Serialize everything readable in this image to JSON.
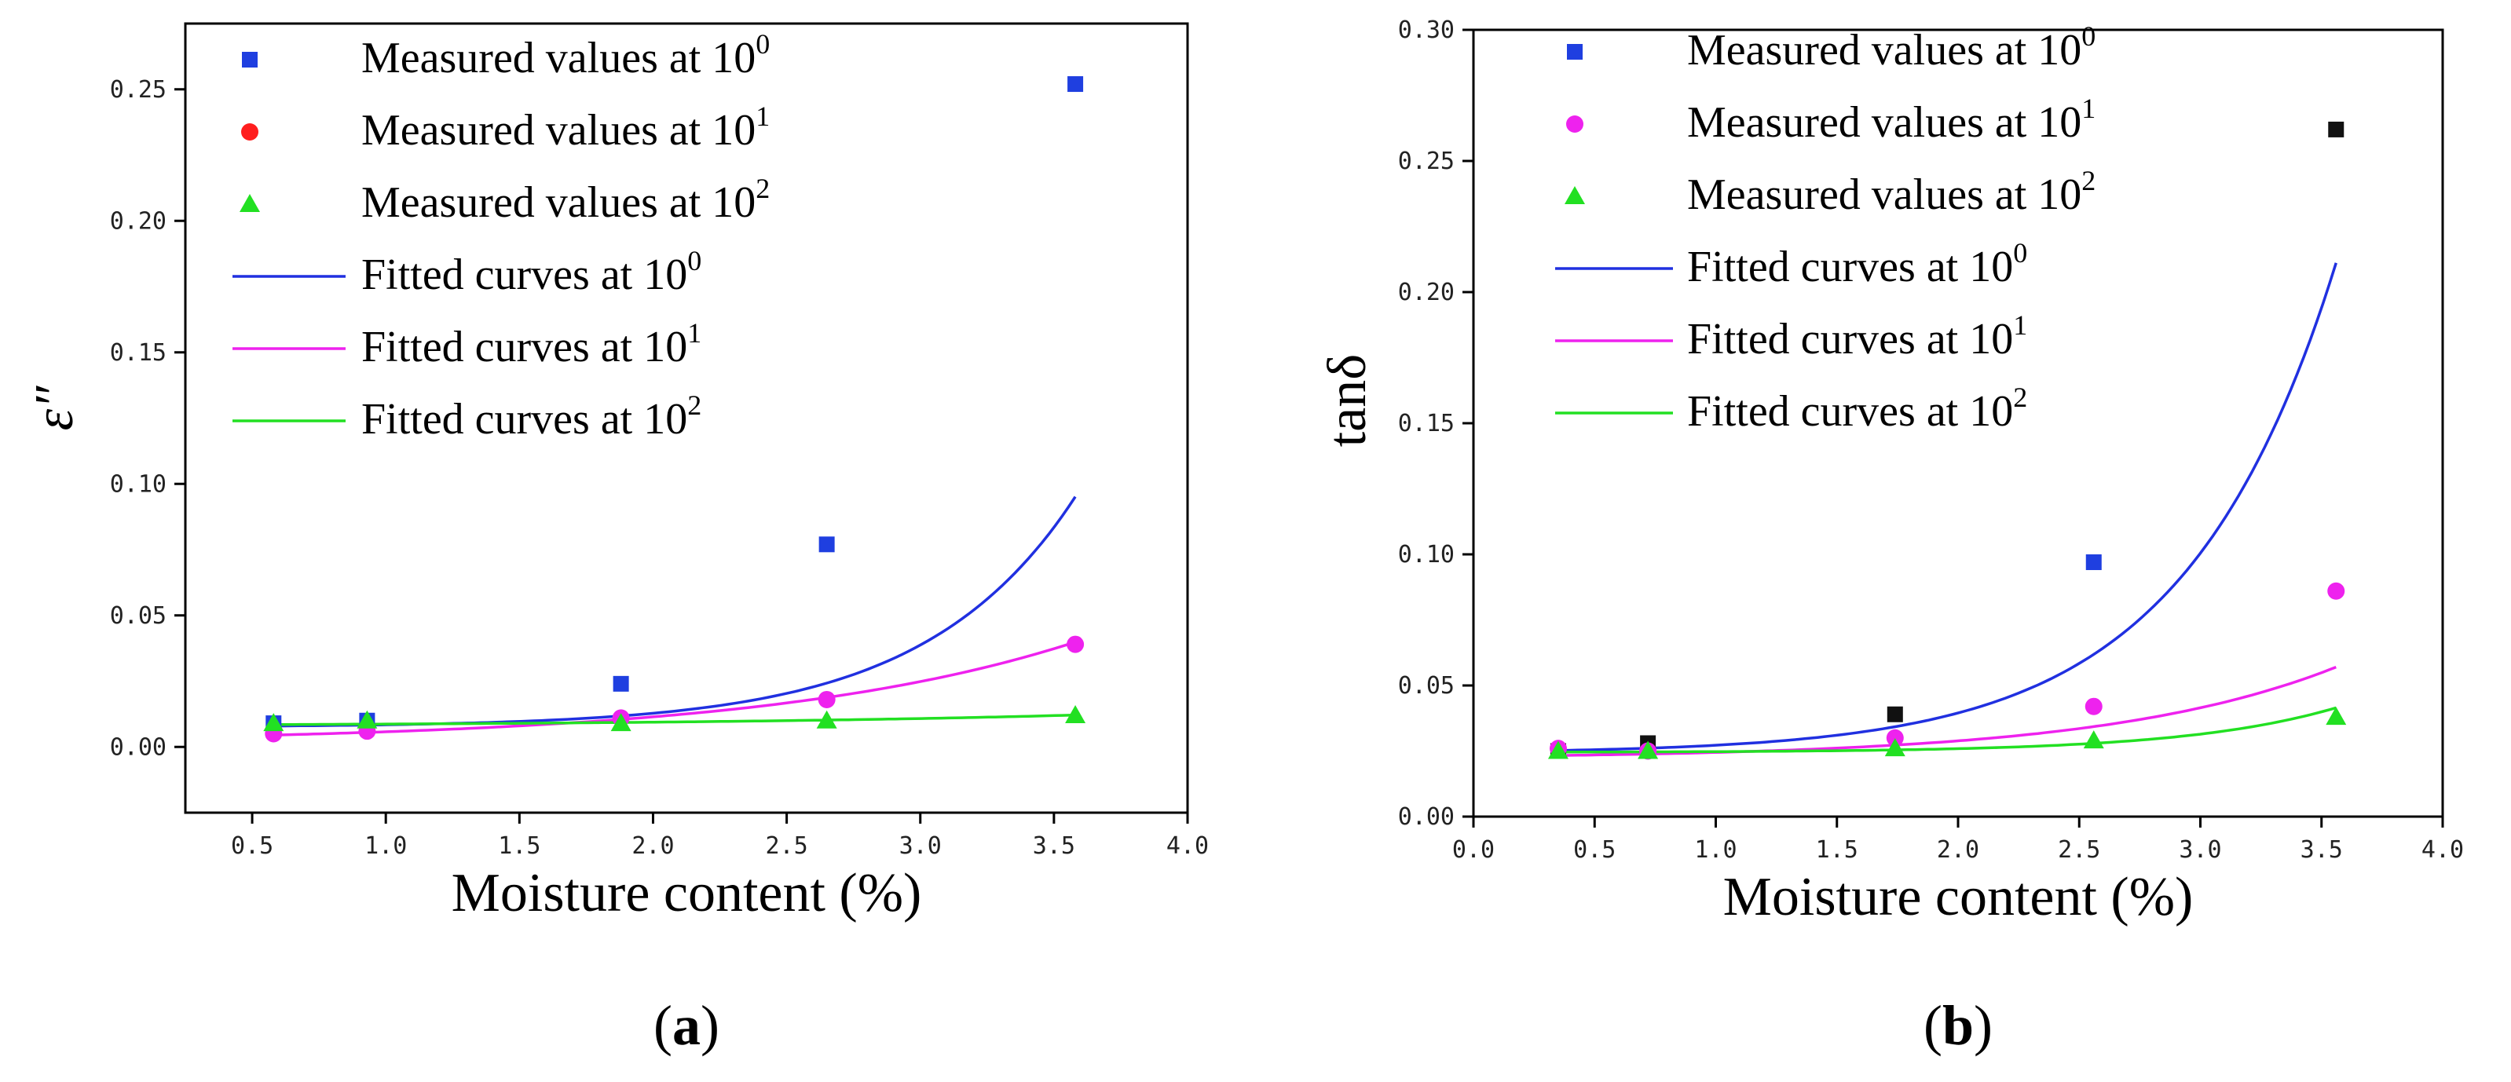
{
  "chart_data": [
    {
      "type": "scatter",
      "panel_label": "a",
      "ylabel": "ε″",
      "xlabel": "Moisture content (%)",
      "xlim": [
        0.25,
        4.0
      ],
      "ylim": [
        -0.025,
        0.275
      ],
      "xticks": [
        "0.5",
        "1.0",
        "1.5",
        "2.0",
        "2.5",
        "3.0",
        "3.5",
        "4.0"
      ],
      "yticks": [
        "0.00",
        "0.05",
        "0.10",
        "0.15",
        "0.20",
        "0.25"
      ],
      "x": [
        0.58,
        0.93,
        1.88,
        2.65,
        3.58
      ],
      "series": [
        {
          "name": "Measured values at 10",
          "sup": "0",
          "kind": "measured",
          "marker": "square",
          "color": "#1f3fe0",
          "values": [
            0.009,
            0.01,
            0.024,
            0.077,
            0.252
          ]
        },
        {
          "name": "Measured values at 10",
          "sup": "1",
          "kind": "measured",
          "marker": "circle",
          "color": "#ff1e1e",
          "point_color": "#ee22ee",
          "values": [
            0.005,
            0.006,
            0.011,
            0.018,
            0.039
          ]
        },
        {
          "name": "Measured values at 10",
          "sup": "2",
          "kind": "measured",
          "marker": "triangle",
          "color": "#22e022",
          "values": [
            0.009,
            0.01,
            0.009,
            0.01,
            0.012
          ]
        },
        {
          "name": "Fitted curves at 10",
          "sup": "0",
          "kind": "fitted",
          "color": "#2030e0",
          "fit": {
            "a": 0.00795,
            "b": 0.00042,
            "k": 1.78,
            "x0": 0.58
          }
        },
        {
          "name": "Fitted curves at 10",
          "sup": "1",
          "kind": "fitted",
          "color": "#ee22ee",
          "fit": {
            "a": 0.0045,
            "b": 0.0029,
            "k": 0.86,
            "x0": 0.58
          }
        },
        {
          "name": "Fitted curves at 10",
          "sup": "2",
          "kind": "fitted",
          "color": "#22e022",
          "fit": {
            "a": 0.0085,
            "b": 0.0006,
            "k": 0.65,
            "x0": 0.58
          }
        }
      ]
    },
    {
      "type": "scatter",
      "panel_label": "b",
      "ylabel": "tanδ",
      "xlabel": "Moisture content (%)",
      "xlim": [
        0.0,
        4.0
      ],
      "ylim": [
        0.0,
        0.3
      ],
      "xticks": [
        "0.0",
        "0.5",
        "1.0",
        "1.5",
        "2.0",
        "2.5",
        "3.0",
        "3.5",
        "4.0"
      ],
      "yticks": [
        "0.00",
        "0.05",
        "0.10",
        "0.15",
        "0.20",
        "0.25",
        "0.30"
      ],
      "x": [
        0.35,
        0.72,
        1.74,
        2.56,
        3.56
      ],
      "series": [
        {
          "name": "Measured values at 10",
          "sup": "0",
          "kind": "measured",
          "marker": "square",
          "color": "#1f3fe0",
          "point_colors": [
            "#111111",
            "#111111",
            "#111111",
            "#1f3fe0",
            "#111111"
          ],
          "values": [
            0.025,
            0.028,
            0.039,
            0.097,
            0.262
          ]
        },
        {
          "name": "Measured values at 10",
          "sup": "1",
          "kind": "measured",
          "marker": "circle",
          "color": "#ee22ee",
          "values": [
            0.026,
            0.025,
            0.03,
            0.042,
            0.086
          ]
        },
        {
          "name": "Measured values at 10",
          "sup": "2",
          "kind": "measured",
          "marker": "triangle",
          "color": "#22e022",
          "values": [
            0.025,
            0.025,
            0.026,
            0.029,
            0.038
          ]
        },
        {
          "name": "Fitted curves at 10",
          "sup": "0",
          "kind": "fitted",
          "color": "#2030e0",
          "fit": {
            "a": 0.0252,
            "b": 0.0011,
            "k": 1.6,
            "x0": 0.35
          }
        },
        {
          "name": "Fitted curves at 10",
          "sup": "1",
          "kind": "fitted",
          "color": "#ee22ee",
          "fit": {
            "a": 0.0233,
            "b": 0.0012,
            "k": 1.05,
            "x0": 0.35
          }
        },
        {
          "name": "Fitted curves at 10",
          "sup": "2",
          "kind": "fitted",
          "color": "#22e022",
          "fit": {
            "a": 0.0246,
            "b": 0.0001,
            "k": 1.6,
            "x0": 0.35
          }
        }
      ]
    }
  ]
}
